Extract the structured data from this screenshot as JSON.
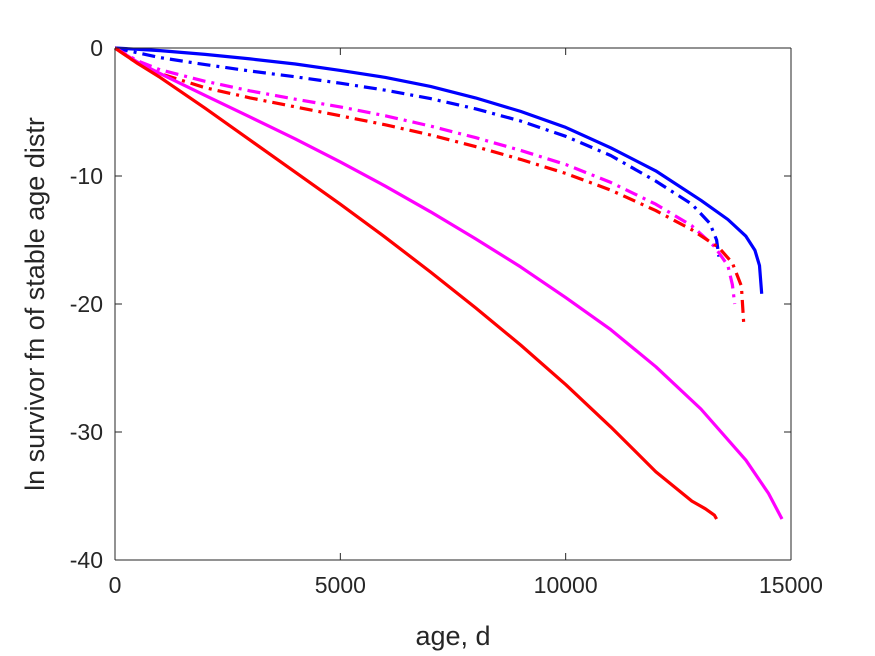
{
  "chart_data": {
    "type": "line",
    "xlabel": "age, d",
    "ylabel": "ln survivor fn of stable age distr",
    "xlim": [
      0,
      15000
    ],
    "ylim": [
      -40,
      0
    ],
    "xticks": [
      0,
      5000,
      10000,
      15000
    ],
    "yticks": [
      0,
      -10,
      -20,
      -30,
      -40
    ],
    "xtick_labels": [
      "0",
      "5000",
      "10000",
      "15000"
    ],
    "ytick_labels": [
      "0",
      "-10",
      "-20",
      "-30",
      "-40"
    ],
    "grid": false,
    "legend": "none",
    "series": [
      {
        "color": "#0000ff",
        "dash": "solid",
        "x": [
          0,
          1000,
          2000,
          3000,
          4000,
          5000,
          6000,
          7000,
          8000,
          9000,
          10000,
          11000,
          12000,
          13000,
          13600,
          14000,
          14200,
          14300,
          14350
        ],
        "y": [
          0,
          -0.2,
          -0.5,
          -0.85,
          -1.25,
          -1.75,
          -2.3,
          -3.0,
          -3.9,
          -4.95,
          -6.2,
          -7.8,
          -9.6,
          -11.9,
          -13.4,
          -14.7,
          -15.8,
          -17.0,
          -19.2
        ]
      },
      {
        "color": "#0000ff",
        "dash": "dashdot",
        "x": [
          0,
          1000,
          2000,
          3000,
          4000,
          5000,
          6000,
          7000,
          8000,
          9000,
          10000,
          11000,
          12000,
          12800,
          13200,
          13350,
          13400
        ],
        "y": [
          0,
          -0.75,
          -1.3,
          -1.8,
          -2.25,
          -2.75,
          -3.3,
          -3.95,
          -4.75,
          -5.7,
          -6.9,
          -8.4,
          -10.4,
          -12.2,
          -13.7,
          -15.0,
          -16.3
        ]
      },
      {
        "color": "#ff00ff",
        "dash": "dashdot",
        "x": [
          0,
          500,
          1000,
          2000,
          3000,
          4000,
          5000,
          6000,
          7000,
          8000,
          9000,
          10000,
          11000,
          12000,
          12800,
          13300,
          13600,
          13700,
          13750
        ],
        "y": [
          0,
          -1.0,
          -1.7,
          -2.6,
          -3.35,
          -4.0,
          -4.6,
          -5.3,
          -6.1,
          -7.0,
          -8.0,
          -9.1,
          -10.5,
          -12.2,
          -13.9,
          -15.5,
          -17.0,
          -18.5,
          -20.0
        ]
      },
      {
        "color": "#ff0000",
        "dash": "dashdot",
        "x": [
          0,
          500,
          1000,
          2000,
          3000,
          4000,
          5000,
          6000,
          7000,
          8000,
          9000,
          10000,
          11000,
          12000,
          12800,
          13400,
          13700,
          13900,
          13950
        ],
        "y": [
          0,
          -1.2,
          -2.0,
          -3.1,
          -3.9,
          -4.6,
          -5.3,
          -6.0,
          -6.8,
          -7.7,
          -8.7,
          -9.8,
          -11.1,
          -12.7,
          -14.2,
          -15.6,
          -16.8,
          -18.6,
          -21.5
        ]
      },
      {
        "color": "#ff00ff",
        "dash": "solid",
        "x": [
          0,
          500,
          1000,
          2000,
          3000,
          4000,
          5000,
          6000,
          7000,
          8000,
          9000,
          10000,
          11000,
          12000,
          13000,
          14000,
          14500,
          14800
        ],
        "y": [
          0,
          -1.1,
          -2.0,
          -3.7,
          -5.4,
          -7.1,
          -8.9,
          -10.8,
          -12.8,
          -14.9,
          -17.1,
          -19.5,
          -22.0,
          -24.9,
          -28.2,
          -32.2,
          -34.8,
          -36.8
        ]
      },
      {
        "color": "#ff0000",
        "dash": "solid",
        "x": [
          0,
          500,
          1000,
          2000,
          3000,
          4000,
          5000,
          6000,
          7000,
          8000,
          9000,
          10000,
          11000,
          12000,
          12800,
          13100,
          13300,
          13350
        ],
        "y": [
          0,
          -1.2,
          -2.3,
          -4.7,
          -7.2,
          -9.7,
          -12.2,
          -14.8,
          -17.5,
          -20.3,
          -23.2,
          -26.3,
          -29.6,
          -33.1,
          -35.4,
          -36.0,
          -36.5,
          -36.8
        ]
      }
    ]
  }
}
